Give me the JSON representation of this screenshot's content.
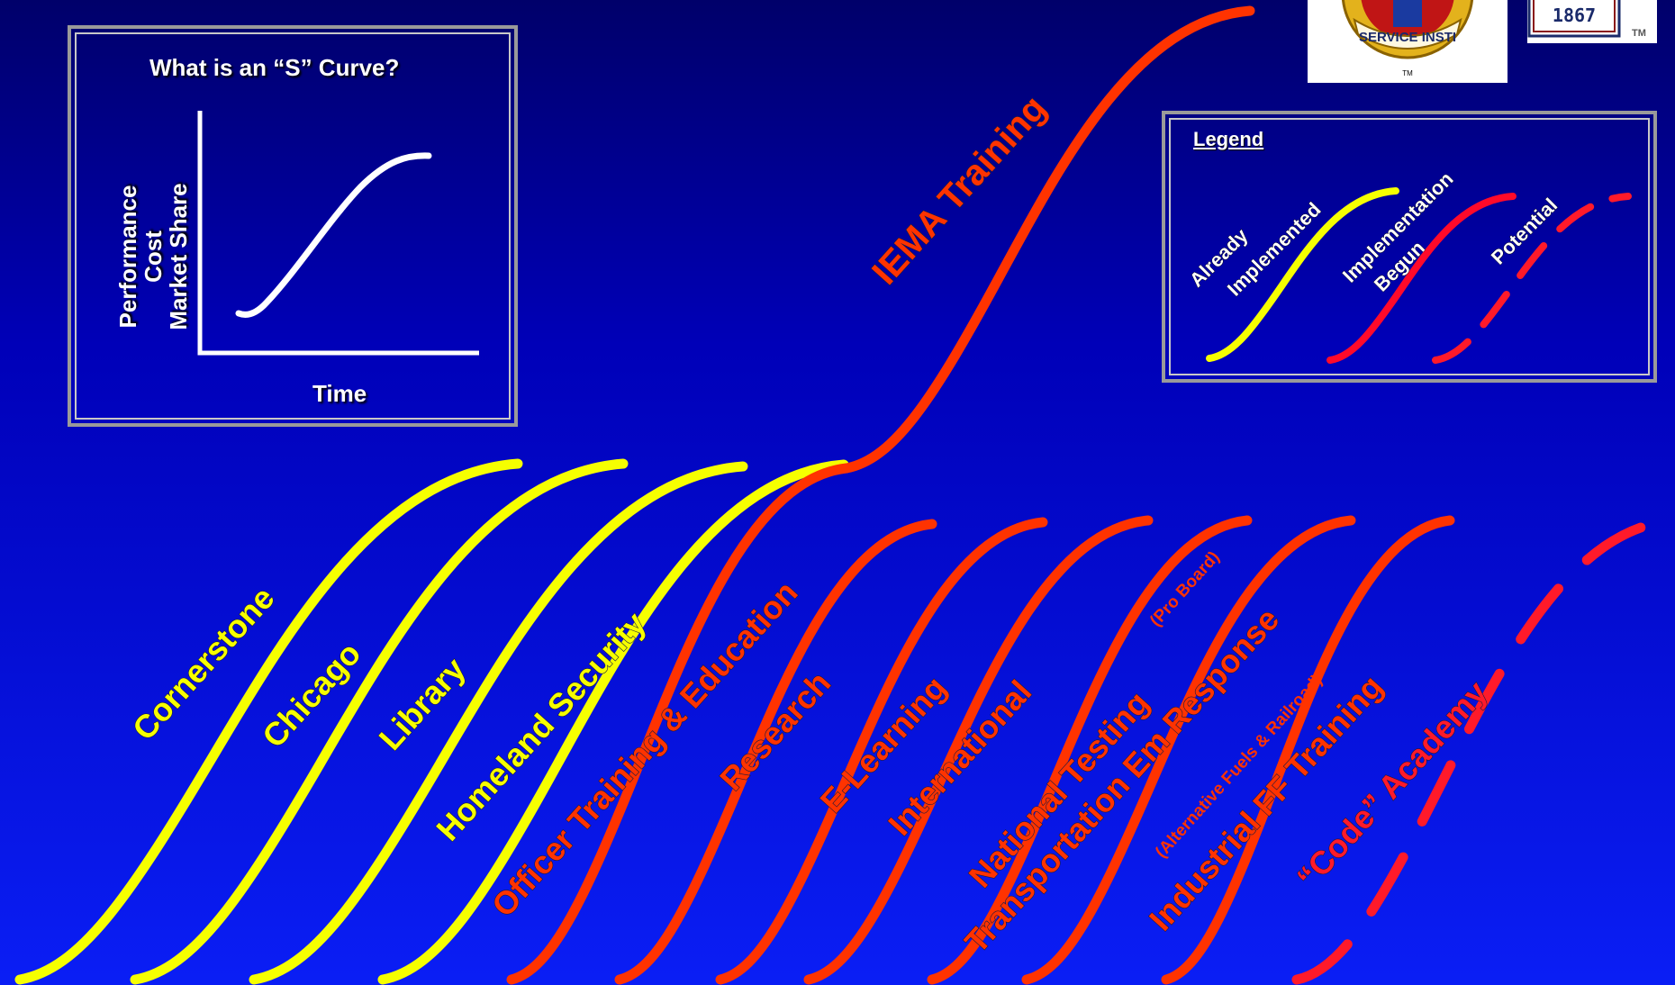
{
  "inset": {
    "title": "What is an “S” Curve?",
    "ylabel_lines": [
      "Performance",
      "Cost",
      "Market Share"
    ],
    "xlabel": "Time"
  },
  "legend": {
    "title": "Legend",
    "items": [
      {
        "label_lines": [
          "Already",
          "Implemented"
        ],
        "style": "already"
      },
      {
        "label_lines": [
          "Implementation",
          "Begun"
        ],
        "style": "begun"
      },
      {
        "label_lines": [
          "Potential"
        ],
        "style": "potential"
      }
    ]
  },
  "logo": {
    "seal_text": "SERVICE INSTI",
    "seal_tm": "TM",
    "year": "1867",
    "tm": "TM"
  },
  "styles": {
    "already": "#f6ff00",
    "begun": "#ff3300",
    "potential": "#ff1a2a",
    "legend_begun": "#ff0a2a",
    "white": "#ffffff"
  },
  "curves": [
    {
      "label": "Cornerstone",
      "style": "already"
    },
    {
      "label": "Chicago",
      "style": "already"
    },
    {
      "label": "Library",
      "style": "already"
    },
    {
      "label": "Homeland Security",
      "style": "already"
    },
    {
      "label": "Officer Training & Education",
      "style": "begun"
    },
    {
      "label": "IEMA Training",
      "style": "begun"
    },
    {
      "label": "Research",
      "style": "begun"
    },
    {
      "label": "E-Learning",
      "style": "begun"
    },
    {
      "label": "International",
      "style": "begun"
    },
    {
      "label": "National Testing",
      "sub": "(Pro Board)",
      "style": "begun"
    },
    {
      "label": "Transportation Em Response",
      "sub": "(Alternative Fuels & Railroad)",
      "style": "begun"
    },
    {
      "label": "Industrial FF Training",
      "style": "begun"
    },
    {
      "label": "“Code” Academy",
      "style": "potential"
    }
  ]
}
